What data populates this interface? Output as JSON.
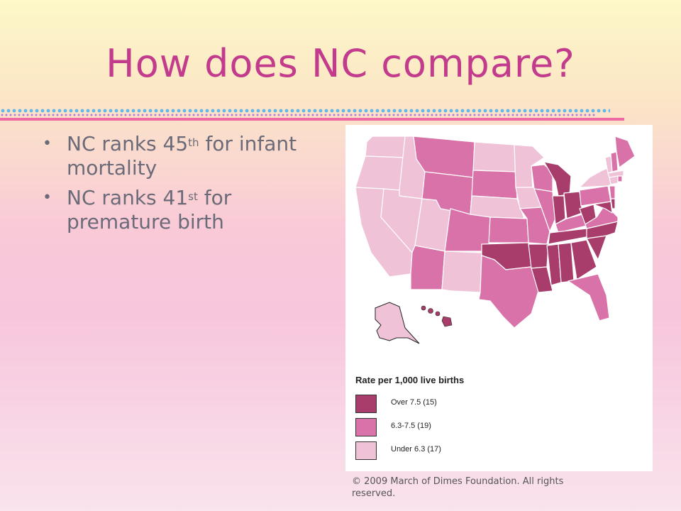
{
  "slide": {
    "title": "How does NC compare?",
    "bullets": [
      {
        "pre": "NC ranks 45",
        "sup": "th",
        "post": " for infant mortality"
      },
      {
        "pre": "NC ranks 41",
        "sup": "st",
        "post": " for premature birth"
      }
    ],
    "copyright": "© 2009 March of Dimes Foundation. All rights reserved."
  },
  "map": {
    "legend": {
      "title": "Rate per 1,000 live births",
      "items": [
        {
          "label": "Over 7.5 (15)",
          "color": "#a83c6b"
        },
        {
          "label": "6.3-7.5 (19)",
          "color": "#d872a8"
        },
        {
          "label": "Under 6.3 (17)",
          "color": "#f0c2d8"
        }
      ]
    },
    "colors": {
      "high": "#a83c6b",
      "mid": "#d872a8",
      "low": "#f0c2d8",
      "border": "#ffffff",
      "outline": "#222222"
    }
  }
}
